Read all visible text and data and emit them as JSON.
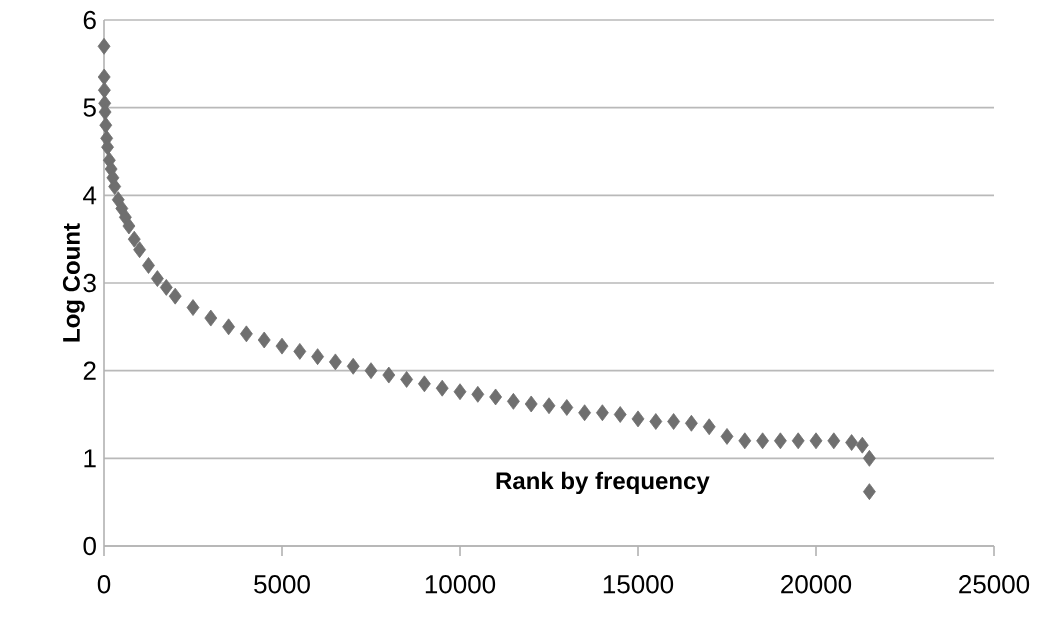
{
  "chart_data": {
    "type": "scatter",
    "xlabel": "Rank by frequency",
    "ylabel": "Log Count",
    "marker": "diamond",
    "grid": "y",
    "color": "#6f6f6f",
    "x": [
      1,
      5,
      10,
      20,
      30,
      50,
      75,
      100,
      150,
      200,
      250,
      300,
      400,
      500,
      600,
      700,
      850,
      1000,
      1250,
      1500,
      1750,
      2000,
      2500,
      3000,
      3500,
      4000,
      4500,
      5000,
      5500,
      6000,
      6500,
      7000,
      7500,
      8000,
      8500,
      9000,
      9500,
      10000,
      10500,
      11000,
      11500,
      12000,
      12500,
      13000,
      13500,
      14000,
      14500,
      15000,
      15500,
      16000,
      16500,
      17000,
      17500,
      18000,
      18500,
      19000,
      19500,
      20000,
      20500,
      21000,
      21300,
      21500,
      21500
    ],
    "values": [
      5.7,
      5.35,
      5.2,
      5.05,
      4.95,
      4.8,
      4.65,
      4.55,
      4.4,
      4.3,
      4.2,
      4.1,
      3.95,
      3.85,
      3.75,
      3.65,
      3.5,
      3.38,
      3.2,
      3.05,
      2.95,
      2.85,
      2.72,
      2.6,
      2.5,
      2.42,
      2.35,
      2.28,
      2.22,
      2.16,
      2.1,
      2.05,
      2.0,
      1.95,
      1.9,
      1.85,
      1.8,
      1.76,
      1.73,
      1.7,
      1.65,
      1.62,
      1.6,
      1.58,
      1.52,
      1.52,
      1.5,
      1.45,
      1.42,
      1.42,
      1.4,
      1.36,
      1.25,
      1.2,
      1.2,
      1.2,
      1.2,
      1.2,
      1.2,
      1.18,
      1.15,
      1.0,
      0.62
    ],
    "xlim": [
      0,
      25000
    ],
    "ylim": [
      0,
      6
    ],
    "xticks": [
      0,
      5000,
      10000,
      15000,
      20000,
      25000
    ],
    "yticks": [
      0,
      1,
      2,
      3,
      4,
      5,
      6
    ]
  }
}
